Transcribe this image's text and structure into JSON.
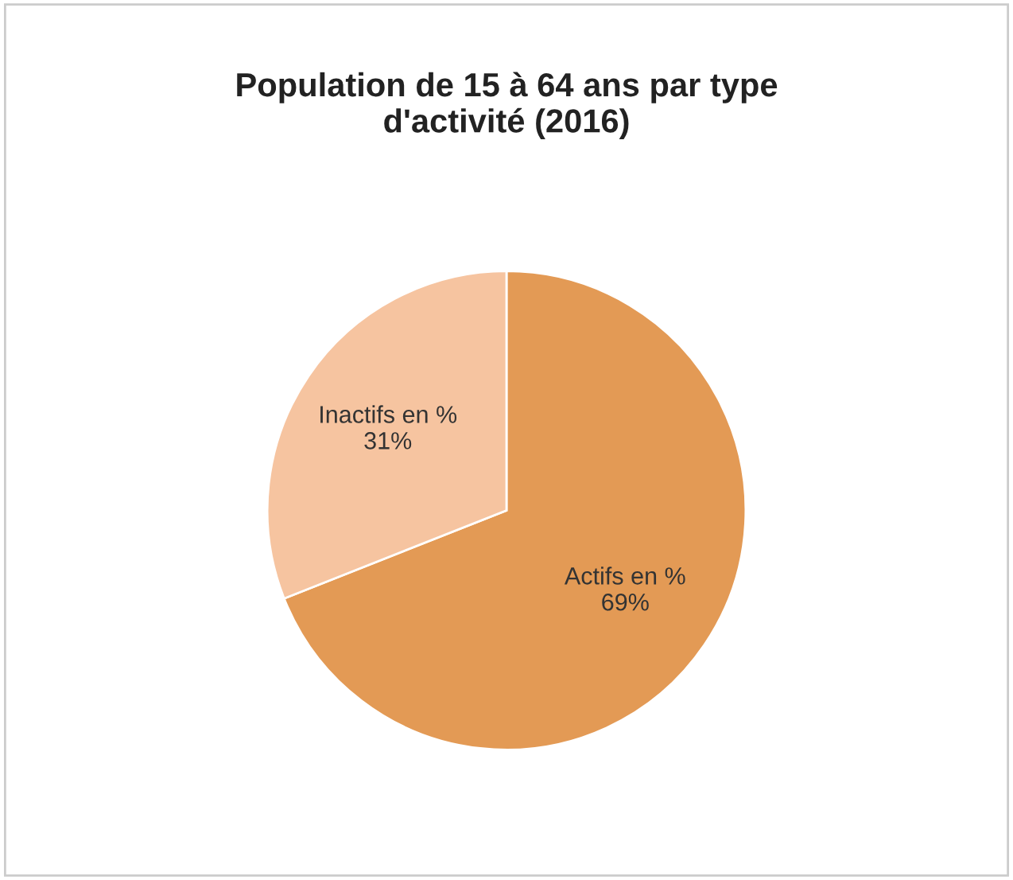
{
  "chart_data": {
    "type": "pie",
    "title": "Population de 15 à 64 ans par type\nd'activité (2016)",
    "categories": [
      "Actifs en %",
      "Inactifs en %"
    ],
    "values": [
      69,
      31
    ],
    "value_labels": [
      "69%",
      "31%"
    ],
    "colors": [
      "#e39a55",
      "#f6c4a0"
    ]
  }
}
